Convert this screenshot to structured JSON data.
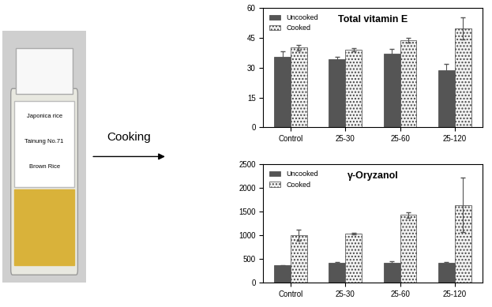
{
  "photo": {
    "label_lines": [
      "Japonica rice",
      "Tainung No.71",
      "Brown Rice"
    ]
  },
  "arrow_label": "Cooking",
  "chart_data": [
    {
      "type": "bar",
      "title": "Total vitamin E",
      "categories": [
        "Control",
        "25-30",
        "25-60",
        "25-120"
      ],
      "series": [
        {
          "name": "Uncooked",
          "color": "#555555",
          "values": [
            35.5,
            34,
            37,
            28.5
          ],
          "errors": [
            2.5,
            1.5,
            2.5,
            3.5
          ]
        },
        {
          "name": "Cooked",
          "color": "#f2f2f2",
          "values": [
            40,
            39,
            43.5,
            49.5
          ],
          "errors": [
            1.5,
            0.8,
            1.2,
            5.5
          ]
        }
      ],
      "ylim": [
        0,
        60
      ],
      "yticks": [
        0,
        15,
        30,
        45,
        60
      ],
      "legend": "upper left"
    },
    {
      "type": "bar",
      "title": "γ-Oryzanol",
      "categories": [
        "Control",
        "25-30",
        "25-60",
        "25-120"
      ],
      "series": [
        {
          "name": "Uncooked",
          "color": "#555555",
          "values": [
            360,
            410,
            420,
            410
          ],
          "errors": [
            10,
            20,
            25,
            25
          ]
        },
        {
          "name": "Cooked",
          "color": "#f2f2f2",
          "values": [
            1000,
            1030,
            1430,
            1640
          ],
          "errors": [
            120,
            15,
            60,
            580
          ]
        }
      ],
      "ylim": [
        0,
        2500
      ],
      "yticks": [
        0,
        500,
        1000,
        1500,
        2000,
        2500
      ],
      "legend": "upper left"
    }
  ]
}
